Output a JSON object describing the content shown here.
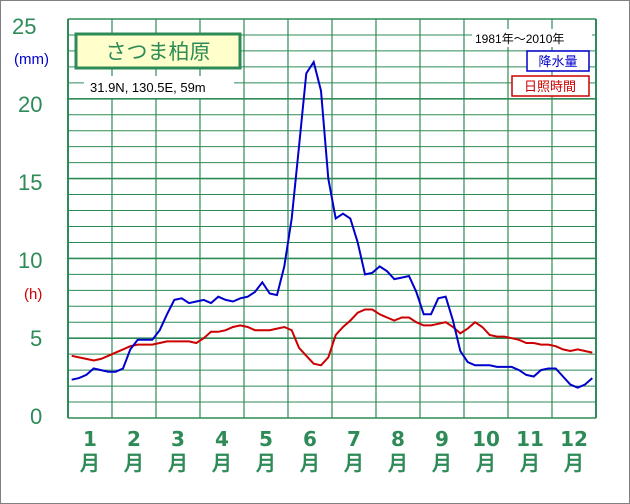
{
  "title_station": "さつま柏原",
  "coords": "31.9N, 130.5E, 59m",
  "period": "1981年～2010年",
  "unit_precip": "(mm)",
  "unit_sun": "(h)",
  "colors": {
    "grid": "#2e8b57",
    "precip": "#0000cc",
    "sun": "#cc0000",
    "title_bg": "#ffffcc"
  },
  "chart_data": {
    "type": "line",
    "title": "さつま柏原",
    "subtitle": "31.9N, 130.5E, 59m",
    "period": "1981年～2010年",
    "ylim": [
      0,
      25
    ],
    "y_ticks": [
      "0",
      "5",
      "10",
      "15",
      "20",
      "25"
    ],
    "x_ticks": [
      "1",
      "2",
      "3",
      "4",
      "5",
      "6",
      "7",
      "8",
      "9",
      "10",
      "11",
      "12"
    ],
    "x_tick_suffix": "月",
    "grid": true,
    "legend_placement": "top-right",
    "x_unit": "半旬 (5-day period, 72 per year)",
    "series": [
      {
        "name": "降水量",
        "unit": "(mm)",
        "color": "#0000cc",
        "values": [
          2.4,
          2.5,
          2.7,
          3.1,
          3.0,
          2.9,
          2.9,
          3.1,
          4.3,
          4.9,
          4.9,
          4.9,
          5.5,
          6.5,
          7.4,
          7.5,
          7.2,
          7.3,
          7.4,
          7.2,
          7.6,
          7.4,
          7.3,
          7.5,
          7.6,
          7.9,
          8.5,
          7.8,
          7.7,
          9.5,
          12.5,
          17.0,
          21.6,
          22.3,
          20.5,
          15.0,
          12.5,
          12.8,
          12.5,
          11.0,
          9.0,
          9.1,
          9.5,
          9.2,
          8.7,
          8.8,
          8.9,
          7.9,
          6.5,
          6.5,
          7.5,
          7.6,
          6.1,
          4.2,
          3.5,
          3.3,
          3.3,
          3.3,
          3.2,
          3.2,
          3.2,
          3.0,
          2.7,
          2.6,
          3.0,
          3.1,
          3.1,
          2.6,
          2.1,
          1.9,
          2.1,
          2.5
        ]
      },
      {
        "name": "日照時間",
        "unit": "(h)",
        "color": "#cc0000",
        "values": [
          3.9,
          3.8,
          3.7,
          3.6,
          3.7,
          3.9,
          4.1,
          4.3,
          4.5,
          4.6,
          4.6,
          4.6,
          4.7,
          4.8,
          4.8,
          4.8,
          4.8,
          4.7,
          5.0,
          5.4,
          5.4,
          5.5,
          5.7,
          5.8,
          5.7,
          5.5,
          5.5,
          5.5,
          5.6,
          5.7,
          5.5,
          4.4,
          3.9,
          3.4,
          3.3,
          3.8,
          5.2,
          5.7,
          6.1,
          6.6,
          6.8,
          6.8,
          6.5,
          6.3,
          6.1,
          6.3,
          6.3,
          6.0,
          5.8,
          5.8,
          5.9,
          6.0,
          5.7,
          5.3,
          5.6,
          6.0,
          5.7,
          5.2,
          5.1,
          5.1,
          5.0,
          4.9,
          4.7,
          4.7,
          4.6,
          4.6,
          4.5,
          4.3,
          4.2,
          4.3,
          4.2,
          4.1
        ]
      }
    ]
  }
}
